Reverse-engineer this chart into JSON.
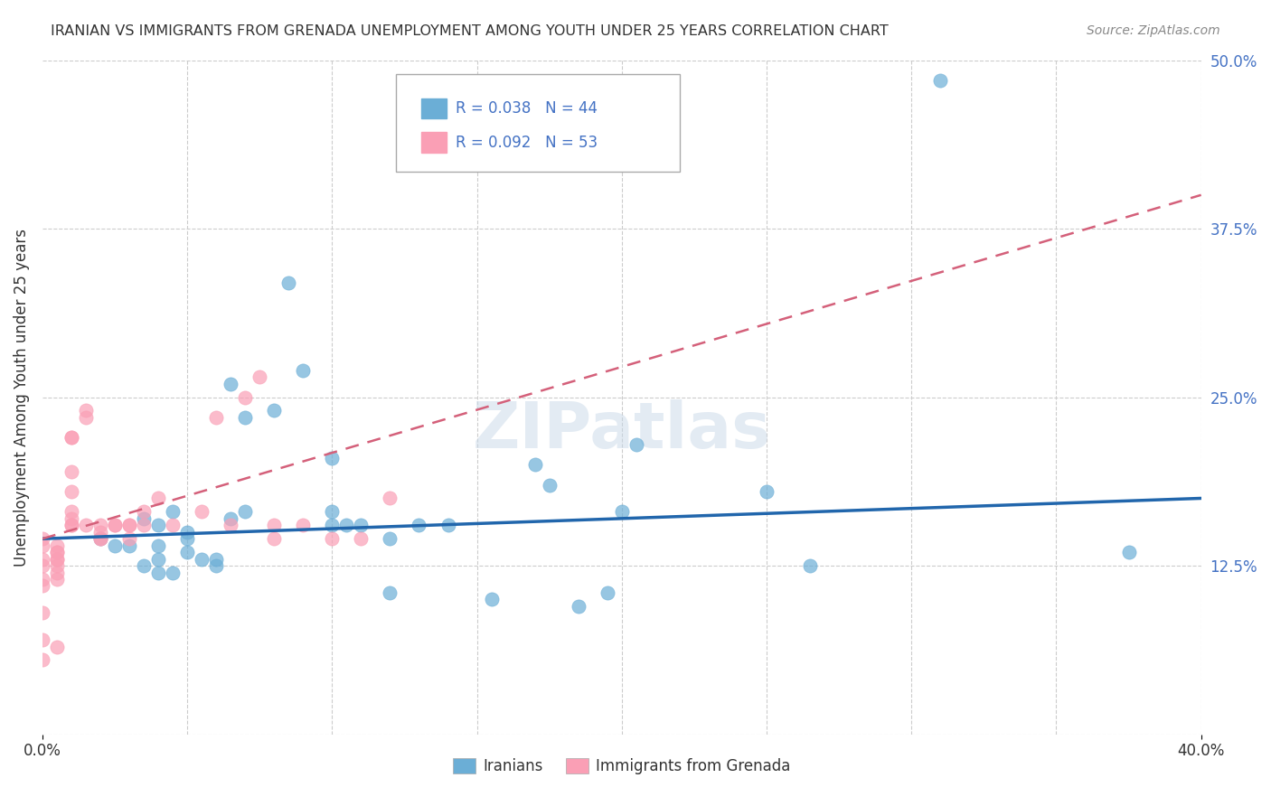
{
  "title": "IRANIAN VS IMMIGRANTS FROM GRENADA UNEMPLOYMENT AMONG YOUTH UNDER 25 YEARS CORRELATION CHART",
  "source": "Source: ZipAtlas.com",
  "ylabel": "Unemployment Among Youth under 25 years",
  "xlim": [
    0.0,
    0.4
  ],
  "ylim": [
    0.0,
    0.5
  ],
  "ytick_right_vals": [
    0.0,
    0.125,
    0.25,
    0.375,
    0.5
  ],
  "ytick_right_labels": [
    "",
    "12.5%",
    "25.0%",
    "37.5%",
    "50.0%"
  ],
  "legend_blue_R": "R = 0.038",
  "legend_blue_N": "N = 44",
  "legend_pink_R": "R = 0.092",
  "legend_pink_N": "N = 53",
  "legend_label_blue": "Iranians",
  "legend_label_pink": "Immigrants from Grenada",
  "blue_x": [
    0.02,
    0.025,
    0.03,
    0.035,
    0.035,
    0.04,
    0.04,
    0.04,
    0.04,
    0.045,
    0.045,
    0.05,
    0.05,
    0.05,
    0.055,
    0.06,
    0.06,
    0.065,
    0.065,
    0.07,
    0.07,
    0.08,
    0.085,
    0.09,
    0.1,
    0.1,
    0.1,
    0.105,
    0.11,
    0.12,
    0.12,
    0.13,
    0.14,
    0.155,
    0.17,
    0.175,
    0.185,
    0.195,
    0.2,
    0.205,
    0.25,
    0.265,
    0.31,
    0.375
  ],
  "blue_y": [
    0.145,
    0.14,
    0.14,
    0.125,
    0.16,
    0.12,
    0.155,
    0.14,
    0.13,
    0.12,
    0.165,
    0.145,
    0.15,
    0.135,
    0.13,
    0.125,
    0.13,
    0.16,
    0.26,
    0.165,
    0.235,
    0.24,
    0.335,
    0.27,
    0.165,
    0.155,
    0.205,
    0.155,
    0.155,
    0.145,
    0.105,
    0.155,
    0.155,
    0.1,
    0.2,
    0.185,
    0.095,
    0.105,
    0.165,
    0.215,
    0.18,
    0.125,
    0.485,
    0.135
  ],
  "pink_x": [
    0.0,
    0.0,
    0.0,
    0.0,
    0.0,
    0.0,
    0.0,
    0.0,
    0.0,
    0.005,
    0.005,
    0.005,
    0.005,
    0.005,
    0.005,
    0.005,
    0.005,
    0.005,
    0.01,
    0.01,
    0.01,
    0.01,
    0.01,
    0.01,
    0.01,
    0.01,
    0.015,
    0.015,
    0.015,
    0.02,
    0.02,
    0.02,
    0.02,
    0.025,
    0.025,
    0.03,
    0.03,
    0.03,
    0.035,
    0.035,
    0.04,
    0.045,
    0.055,
    0.06,
    0.065,
    0.07,
    0.075,
    0.08,
    0.08,
    0.09,
    0.1,
    0.11,
    0.12
  ],
  "pink_y": [
    0.145,
    0.14,
    0.13,
    0.125,
    0.115,
    0.11,
    0.09,
    0.07,
    0.055,
    0.14,
    0.135,
    0.135,
    0.13,
    0.13,
    0.125,
    0.12,
    0.115,
    0.065,
    0.22,
    0.22,
    0.195,
    0.18,
    0.165,
    0.16,
    0.155,
    0.155,
    0.24,
    0.235,
    0.155,
    0.155,
    0.15,
    0.145,
    0.145,
    0.155,
    0.155,
    0.155,
    0.145,
    0.155,
    0.165,
    0.155,
    0.175,
    0.155,
    0.165,
    0.235,
    0.155,
    0.25,
    0.265,
    0.155,
    0.145,
    0.155,
    0.145,
    0.145,
    0.175
  ],
  "blue_line_x": [
    0.0,
    0.4
  ],
  "blue_line_y": [
    0.145,
    0.175
  ],
  "pink_line_x": [
    0.0,
    0.4
  ],
  "pink_line_y": [
    0.145,
    0.4
  ],
  "blue_color": "#6baed6",
  "pink_color": "#fa9fb5",
  "blue_line_color": "#2166ac",
  "pink_line_color": "#d4607a",
  "watermark": "ZIPatlas",
  "background_color": "#ffffff",
  "grid_color": "#cccccc"
}
